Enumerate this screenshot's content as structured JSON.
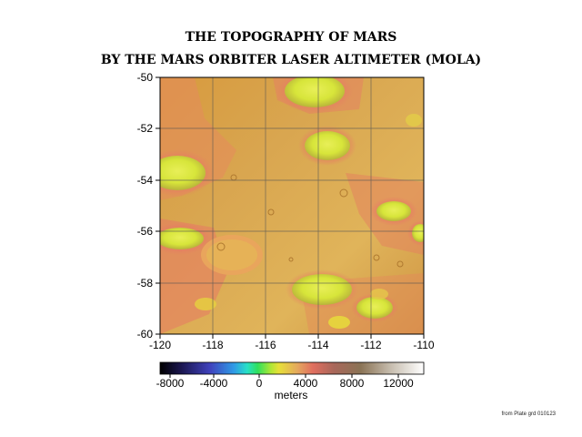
{
  "title": {
    "line1": "THE TOPOGRAPHY OF MARS",
    "line2": "BY THE MARS ORBITER LASER ALTIMETER (MOLA)"
  },
  "map": {
    "lon_range": [
      -120,
      -110
    ],
    "lat_range": [
      -60,
      -50
    ],
    "x_ticks": [
      "-120",
      "-118",
      "-116",
      "-114",
      "-112",
      "-110"
    ],
    "y_ticks": [
      "-50",
      "-52",
      "-54",
      "-56",
      "-58",
      "-60"
    ],
    "gridlines": true,
    "background_colors": [
      "#d79a3e",
      "#d9a650",
      "#e0b45a",
      "#cf9443"
    ],
    "highland_color": "#e67d63",
    "crater_floor_color": "#d7e53a"
  },
  "colorbar": {
    "ticks": [
      "-8000",
      "-4000",
      "0",
      "4000",
      "8000",
      "12000"
    ],
    "range": [
      -8000,
      13000
    ],
    "units": "meters",
    "stops": [
      "#000000",
      "#1b164f",
      "#3f42bd",
      "#2f9ae6",
      "#28e0c8",
      "#2fe05c",
      "#aee636",
      "#e6e038",
      "#e4a95d",
      "#e06e5f",
      "#a8675a",
      "#8a7355",
      "#c9c0b2",
      "#ffffff"
    ]
  },
  "credit": "from Plate grd 010123"
}
